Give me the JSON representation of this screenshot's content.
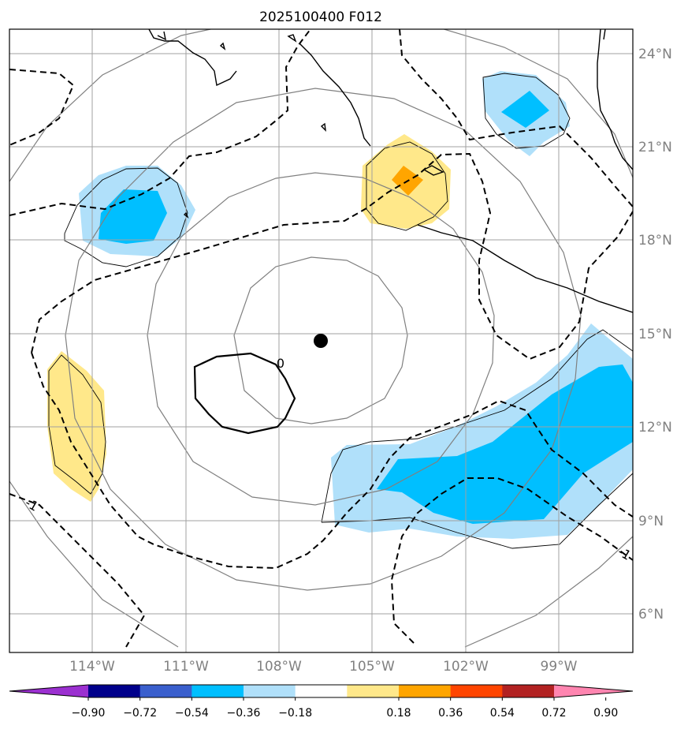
{
  "title": "2025100400 F012",
  "map": {
    "lon_range": [
      -117,
      -97.5
    ],
    "lat_range": [
      5,
      24.7
    ],
    "lon_ticks": [
      {
        "value": -114,
        "label": "114°W"
      },
      {
        "value": -111,
        "label": "111°W"
      },
      {
        "value": -108,
        "label": "108°W"
      },
      {
        "value": -105,
        "label": "105°W"
      },
      {
        "value": -102,
        "label": "102°W"
      },
      {
        "value": -99,
        "label": "99°W"
      }
    ],
    "lat_ticks": [
      {
        "value": 6,
        "label": "6°N"
      },
      {
        "value": 9,
        "label": "9°N"
      },
      {
        "value": 12,
        "label": "12°N"
      },
      {
        "value": 15,
        "label": "15°N"
      },
      {
        "value": 18,
        "label": "18°N"
      },
      {
        "value": 21,
        "label": "21°N"
      },
      {
        "value": 24,
        "label": "24°N"
      }
    ],
    "storm_center": {
      "lon": -106.3,
      "lat": 14.8
    },
    "contour_labels": [
      {
        "text": "0",
        "lon": -107.9,
        "lat": 14.2
      },
      {
        "text": "-1",
        "lon": -116.2,
        "lat": 8.5
      },
      {
        "text": "-1",
        "lon": -97.8,
        "lat": 7.9
      }
    ],
    "grid_color": "#a0a0a0",
    "ring_color": "#808080",
    "coast_color": "#000000"
  },
  "colorbar": {
    "colors": [
      "#9b30d0",
      "#00008b",
      "#3a5fcd",
      "#00bfff",
      "#b0e0fa",
      "#ffffff",
      "#ffe88a",
      "#ffa500",
      "#ff4500",
      "#b22222",
      "#ff85b0"
    ],
    "tick_labels": [
      "−0.90",
      "−0.72",
      "−0.54",
      "−0.36",
      "−0.18",
      "0.18",
      "0.36",
      "0.54",
      "0.72",
      "0.90"
    ]
  }
}
